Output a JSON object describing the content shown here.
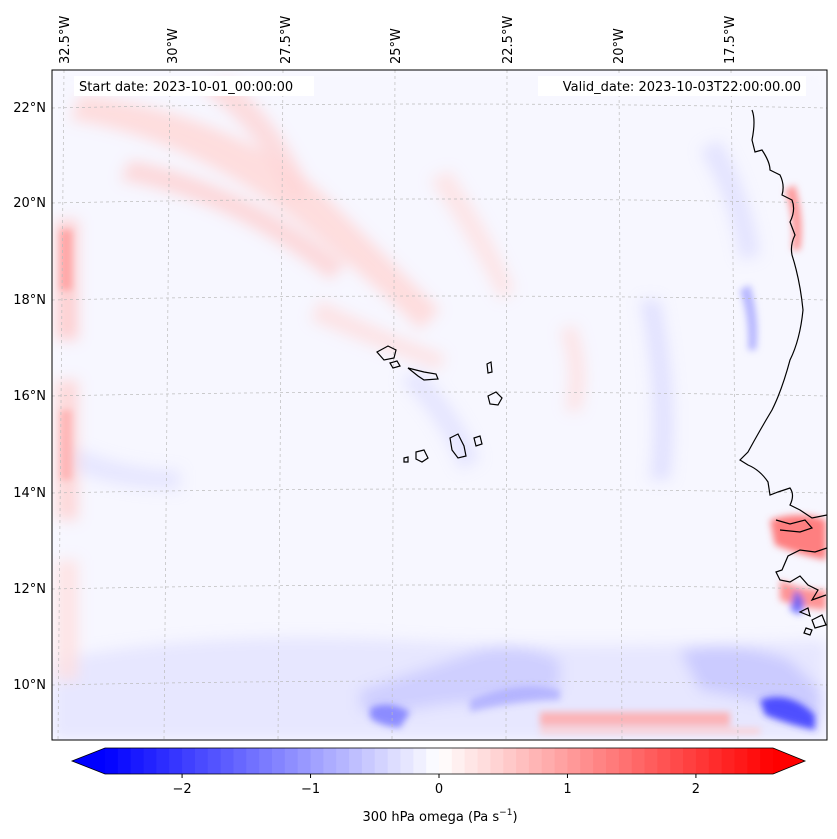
{
  "map": {
    "start_date_label": "Start date: 2023-10-01_00:00:00",
    "valid_date_label": "Valid_date: 2023-10-03T22:00:00.00",
    "lon_labels": [
      "32.5°W",
      "30°W",
      "27.5°W",
      "25°W",
      "22.5°W",
      "20°W",
      "17.5°W"
    ],
    "lat_labels": [
      "22°N",
      "20°N",
      "18°N",
      "16°N",
      "14°N",
      "12°N",
      "10°N"
    ],
    "colors": {
      "negative": "#0000ff",
      "zero": "#ffffff",
      "positive": "#ff0000",
      "coast": "#000000",
      "grid": "#bbbbbb"
    }
  },
  "colorbar": {
    "ticks": [
      "−2",
      "−1",
      "0",
      "1",
      "2"
    ],
    "tick_values": [
      -2,
      -1,
      0,
      1,
      2
    ],
    "range": [
      -2.6,
      2.6
    ],
    "label_main": "300 hPa omega (Pa s",
    "label_sup": "−1",
    "label_end": ")"
  }
}
